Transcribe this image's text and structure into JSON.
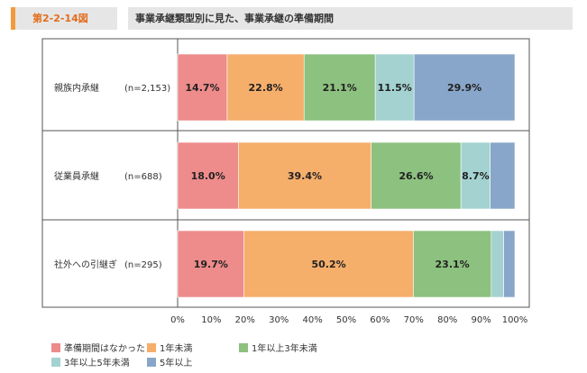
{
  "header": {
    "figure_label": "第2-2-14図",
    "title": "事業承継類型別に見た、事業承継の準備期間"
  },
  "chart_data": {
    "type": "bar",
    "orientation": "horizontal",
    "stacked": true,
    "x_unit": "%",
    "xlim": [
      0,
      100
    ],
    "x_ticks": [
      "0%",
      "10%",
      "20%",
      "30%",
      "40%",
      "50%",
      "60%",
      "70%",
      "80%",
      "90%",
      "100%"
    ],
    "categories": [
      "親族内承継",
      "従業員承継",
      "社外への引継ぎ"
    ],
    "sample_sizes": [
      "(n=2,153)",
      "(n=688)",
      "(n=295)"
    ],
    "series": [
      {
        "name": "準備期間はなかった",
        "color": "#ee8b8b",
        "values": [
          14.7,
          18.0,
          19.7
        ],
        "labels": [
          "14.7%",
          "18.0%",
          "19.7%"
        ]
      },
      {
        "name": "1年未満",
        "color": "#f6ae6b",
        "values": [
          22.8,
          39.4,
          50.2
        ],
        "labels": [
          "22.8%",
          "39.4%",
          "50.2%"
        ]
      },
      {
        "name": "1年以上3年未満",
        "color": "#8cc17f",
        "values": [
          21.1,
          26.6,
          23.1
        ],
        "labels": [
          "21.1%",
          "26.6%",
          "23.1%"
        ]
      },
      {
        "name": "3年以上5年未満",
        "color": "#a3d2d0",
        "values": [
          11.5,
          8.7,
          3.7
        ],
        "labels": [
          "11.5%",
          "8.7%",
          ""
        ]
      },
      {
        "name": "5年以上",
        "color": "#88a6c9",
        "values": [
          29.9,
          7.3,
          3.3
        ],
        "labels": [
          "29.9%",
          "",
          ""
        ]
      }
    ],
    "legend_position": "bottom-left",
    "grid": false
  }
}
